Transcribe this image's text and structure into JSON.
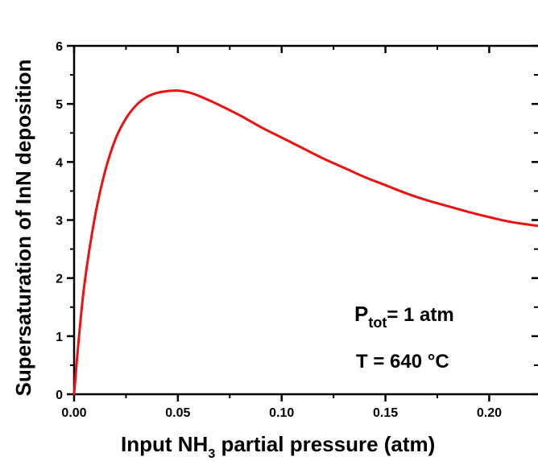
{
  "chart_data": {
    "type": "line",
    "xlabel_pre": "Input NH",
    "xlabel_sub": "3",
    "xlabel_post": " partial pressure (atm)",
    "ylabel": "Supersaturation of InN deposition",
    "xlim": [
      0.0,
      0.2235
    ],
    "ylim": [
      0,
      6
    ],
    "x_ticks": [
      "0.00",
      "0.05",
      "0.10",
      "0.15",
      "0.20"
    ],
    "y_ticks": [
      "0",
      "1",
      "2",
      "3",
      "4",
      "5",
      "6"
    ],
    "grid": false,
    "line_color": "#ee1111",
    "series": [
      {
        "x": [
          0.0,
          0.002,
          0.005,
          0.01,
          0.015,
          0.02,
          0.025,
          0.03,
          0.035,
          0.04,
          0.045,
          0.05,
          0.055,
          0.06,
          0.07,
          0.08,
          0.09,
          0.1,
          0.11,
          0.12,
          0.13,
          0.14,
          0.15,
          0.16,
          0.17,
          0.18,
          0.19,
          0.2,
          0.21,
          0.2235
        ],
        "y": [
          0.0,
          0.85,
          1.9,
          3.05,
          3.85,
          4.4,
          4.75,
          4.98,
          5.12,
          5.19,
          5.22,
          5.23,
          5.2,
          5.14,
          4.98,
          4.8,
          4.6,
          4.42,
          4.24,
          4.06,
          3.9,
          3.74,
          3.6,
          3.46,
          3.34,
          3.24,
          3.14,
          3.05,
          2.97,
          2.9
        ]
      }
    ],
    "annotations": {
      "ptot_main": "P",
      "ptot_sub": "tot",
      "ptot_rest": "= 1 atm",
      "temp": "T = 640 °C"
    }
  }
}
